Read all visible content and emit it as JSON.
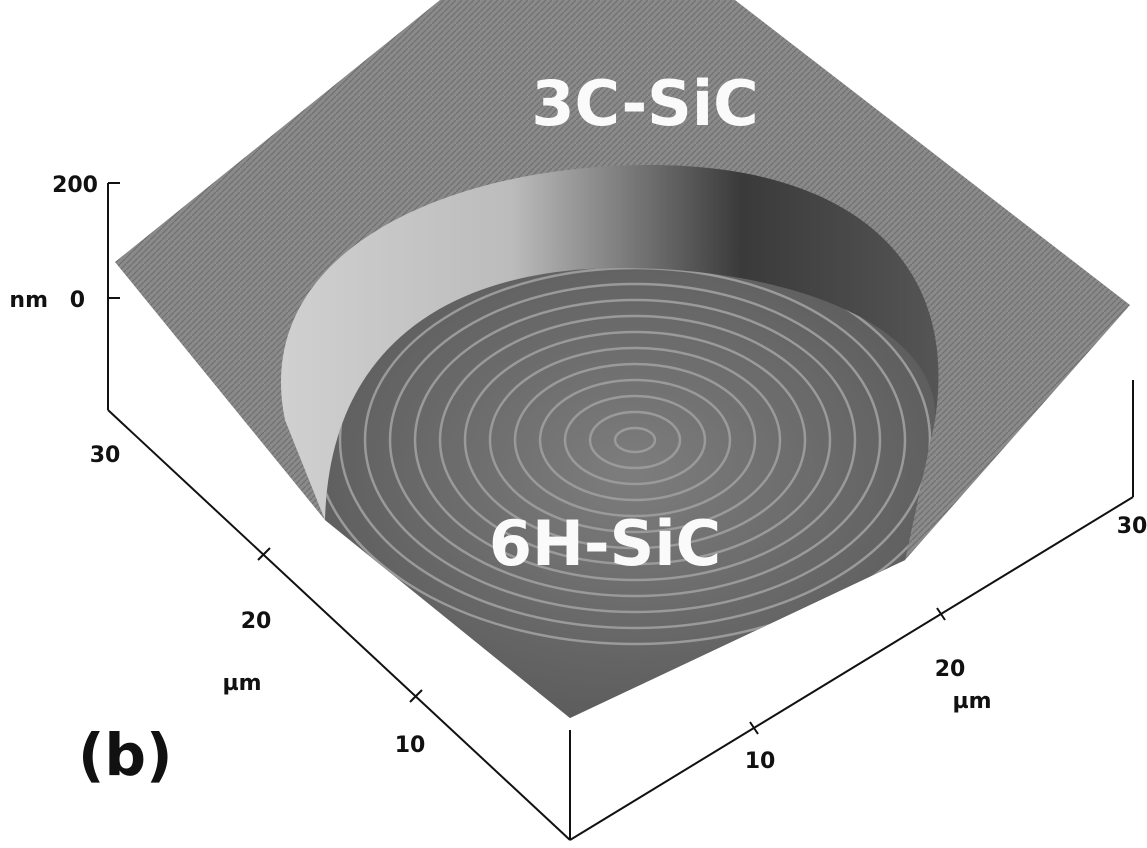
{
  "panel_label": "(b)",
  "regions": {
    "top": "3C-SiC",
    "bottom": "6H-SiC"
  },
  "z_axis": {
    "unit": "nm",
    "ticks": [
      "200",
      "0"
    ]
  },
  "left_axis": {
    "unit": "µm",
    "ticks": [
      "30",
      "20",
      "10"
    ]
  },
  "right_axis": {
    "unit": "µm",
    "ticks": [
      "10",
      "20",
      "30"
    ]
  }
}
